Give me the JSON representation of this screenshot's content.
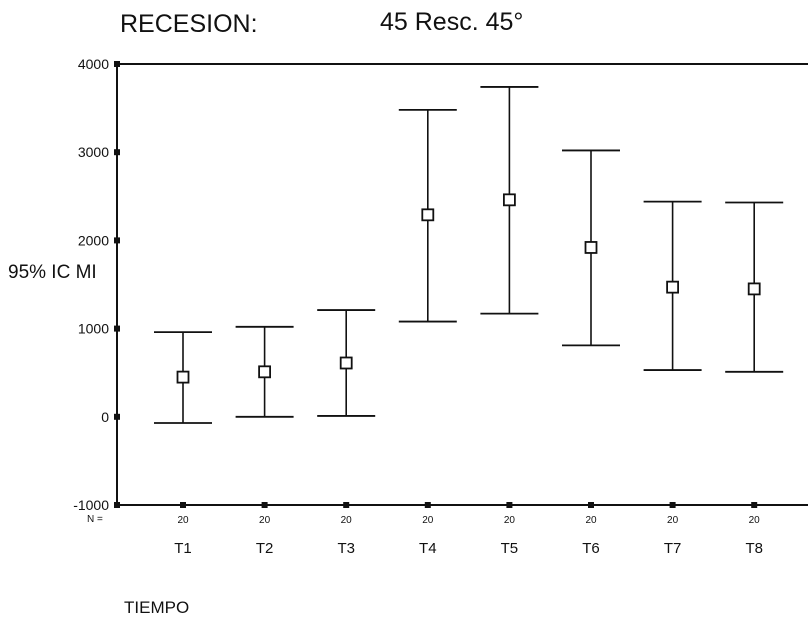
{
  "header": {
    "title_left": "RECESION:",
    "title_right": "45   Resc. 45°"
  },
  "chart_data": {
    "type": "errorbar",
    "title": "RECESION:   45   Resc. 45°",
    "xlabel": "TIEMPO",
    "ylabel": "95% IC MI",
    "n_label": "N =",
    "ylim": [
      -1000,
      4000
    ],
    "yticks": [
      -1000,
      0,
      1000,
      2000,
      3000,
      4000
    ],
    "categories": [
      "T1",
      "T2",
      "T3",
      "T4",
      "T5",
      "T6",
      "T7",
      "T8"
    ],
    "n": [
      20,
      20,
      20,
      20,
      20,
      20,
      20,
      20
    ],
    "mean": [
      450,
      510,
      610,
      2290,
      2460,
      1920,
      1470,
      1450
    ],
    "lower": [
      -70,
      0,
      10,
      1080,
      1170,
      810,
      530,
      510
    ],
    "upper": [
      960,
      1020,
      1210,
      3480,
      3740,
      3020,
      2440,
      2430
    ],
    "grid": false,
    "legend": "none"
  }
}
